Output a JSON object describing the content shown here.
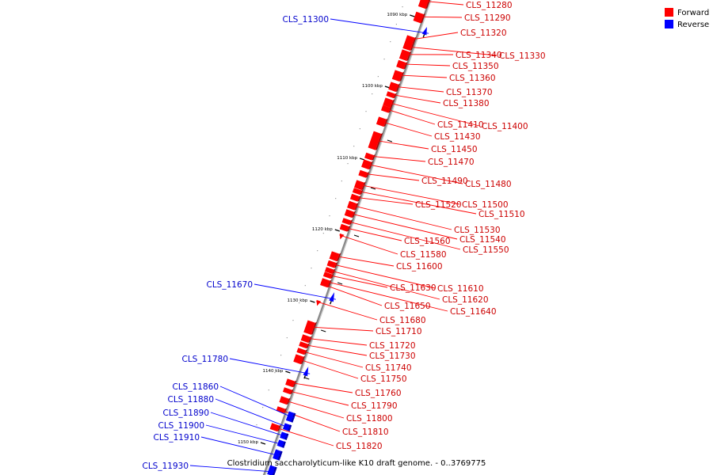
{
  "caption": "Clostridium saccharolyticum-like K10 draft genome. - 0..3769775",
  "legend": [
    {
      "label": "Forward",
      "color": "#ff0000"
    },
    {
      "label": "Reverse",
      "color": "#0000ff"
    }
  ],
  "colors": {
    "forward": "#ff0000",
    "reverse": "#0000ff",
    "axis": "#888888"
  },
  "scale_ticks": [
    {
      "kbp": 1090,
      "label": "1090 kbp"
    },
    {
      "kbp": 1100,
      "label": "1100 kbp"
    },
    {
      "kbp": 1110,
      "label": "1110 kbp"
    },
    {
      "kbp": 1120,
      "label": "1120 kbp"
    },
    {
      "kbp": 1130,
      "label": "1130 kbp"
    },
    {
      "kbp": 1140,
      "label": "1140 kbp"
    },
    {
      "kbp": 1150,
      "label": "1150 kbp"
    }
  ],
  "genes": [
    {
      "label": "CLS_11280",
      "strand": "forward"
    },
    {
      "label": "CLS_11290",
      "strand": "forward"
    },
    {
      "label": "CLS_11300",
      "strand": "reverse"
    },
    {
      "label": "CLS_11320",
      "strand": "forward"
    },
    {
      "label": "CLS_11330",
      "strand": "forward"
    },
    {
      "label": "CLS_11340",
      "strand": "forward"
    },
    {
      "label": "CLS_11350",
      "strand": "forward"
    },
    {
      "label": "CLS_11360",
      "strand": "forward"
    },
    {
      "label": "CLS_11370",
      "strand": "forward"
    },
    {
      "label": "CLS_11380",
      "strand": "forward"
    },
    {
      "label": "CLS_11400",
      "strand": "forward"
    },
    {
      "label": "CLS_11410",
      "strand": "forward"
    },
    {
      "label": "CLS_11430",
      "strand": "forward"
    },
    {
      "label": "CLS_11450",
      "strand": "forward"
    },
    {
      "label": "CLS_11470",
      "strand": "forward"
    },
    {
      "label": "CLS_11480",
      "strand": "forward"
    },
    {
      "label": "CLS_11490",
      "strand": "forward"
    },
    {
      "label": "CLS_11500",
      "strand": "forward"
    },
    {
      "label": "CLS_11510",
      "strand": "forward"
    },
    {
      "label": "CLS_11520",
      "strand": "forward"
    },
    {
      "label": "CLS_11530",
      "strand": "forward"
    },
    {
      "label": "CLS_11540",
      "strand": "forward"
    },
    {
      "label": "CLS_11550",
      "strand": "forward"
    },
    {
      "label": "CLS_11560",
      "strand": "forward"
    },
    {
      "label": "CLS_11580",
      "strand": "forward"
    },
    {
      "label": "CLS_11600",
      "strand": "forward"
    },
    {
      "label": "CLS_11610",
      "strand": "forward"
    },
    {
      "label": "CLS_11620",
      "strand": "forward"
    },
    {
      "label": "CLS_11630",
      "strand": "forward"
    },
    {
      "label": "CLS_11640",
      "strand": "forward"
    },
    {
      "label": "CLS_11650",
      "strand": "forward"
    },
    {
      "label": "CLS_11670",
      "strand": "reverse"
    },
    {
      "label": "CLS_11680",
      "strand": "forward"
    },
    {
      "label": "CLS_11710",
      "strand": "forward"
    },
    {
      "label": "CLS_11720",
      "strand": "forward"
    },
    {
      "label": "CLS_11730",
      "strand": "forward"
    },
    {
      "label": "CLS_11740",
      "strand": "forward"
    },
    {
      "label": "CLS_11750",
      "strand": "forward"
    },
    {
      "label": "CLS_11760",
      "strand": "forward"
    },
    {
      "label": "CLS_11780",
      "strand": "reverse"
    },
    {
      "label": "CLS_11790",
      "strand": "forward"
    },
    {
      "label": "CLS_11800",
      "strand": "forward"
    },
    {
      "label": "CLS_11810",
      "strand": "forward"
    },
    {
      "label": "CLS_11820",
      "strand": "forward"
    },
    {
      "label": "CLS_11860",
      "strand": "reverse"
    },
    {
      "label": "CLS_11880",
      "strand": "reverse"
    },
    {
      "label": "CLS_11890",
      "strand": "reverse"
    },
    {
      "label": "CLS_11900",
      "strand": "reverse"
    },
    {
      "label": "CLS_11910",
      "strand": "reverse"
    },
    {
      "label": "CLS_11930",
      "strand": "reverse"
    }
  ]
}
